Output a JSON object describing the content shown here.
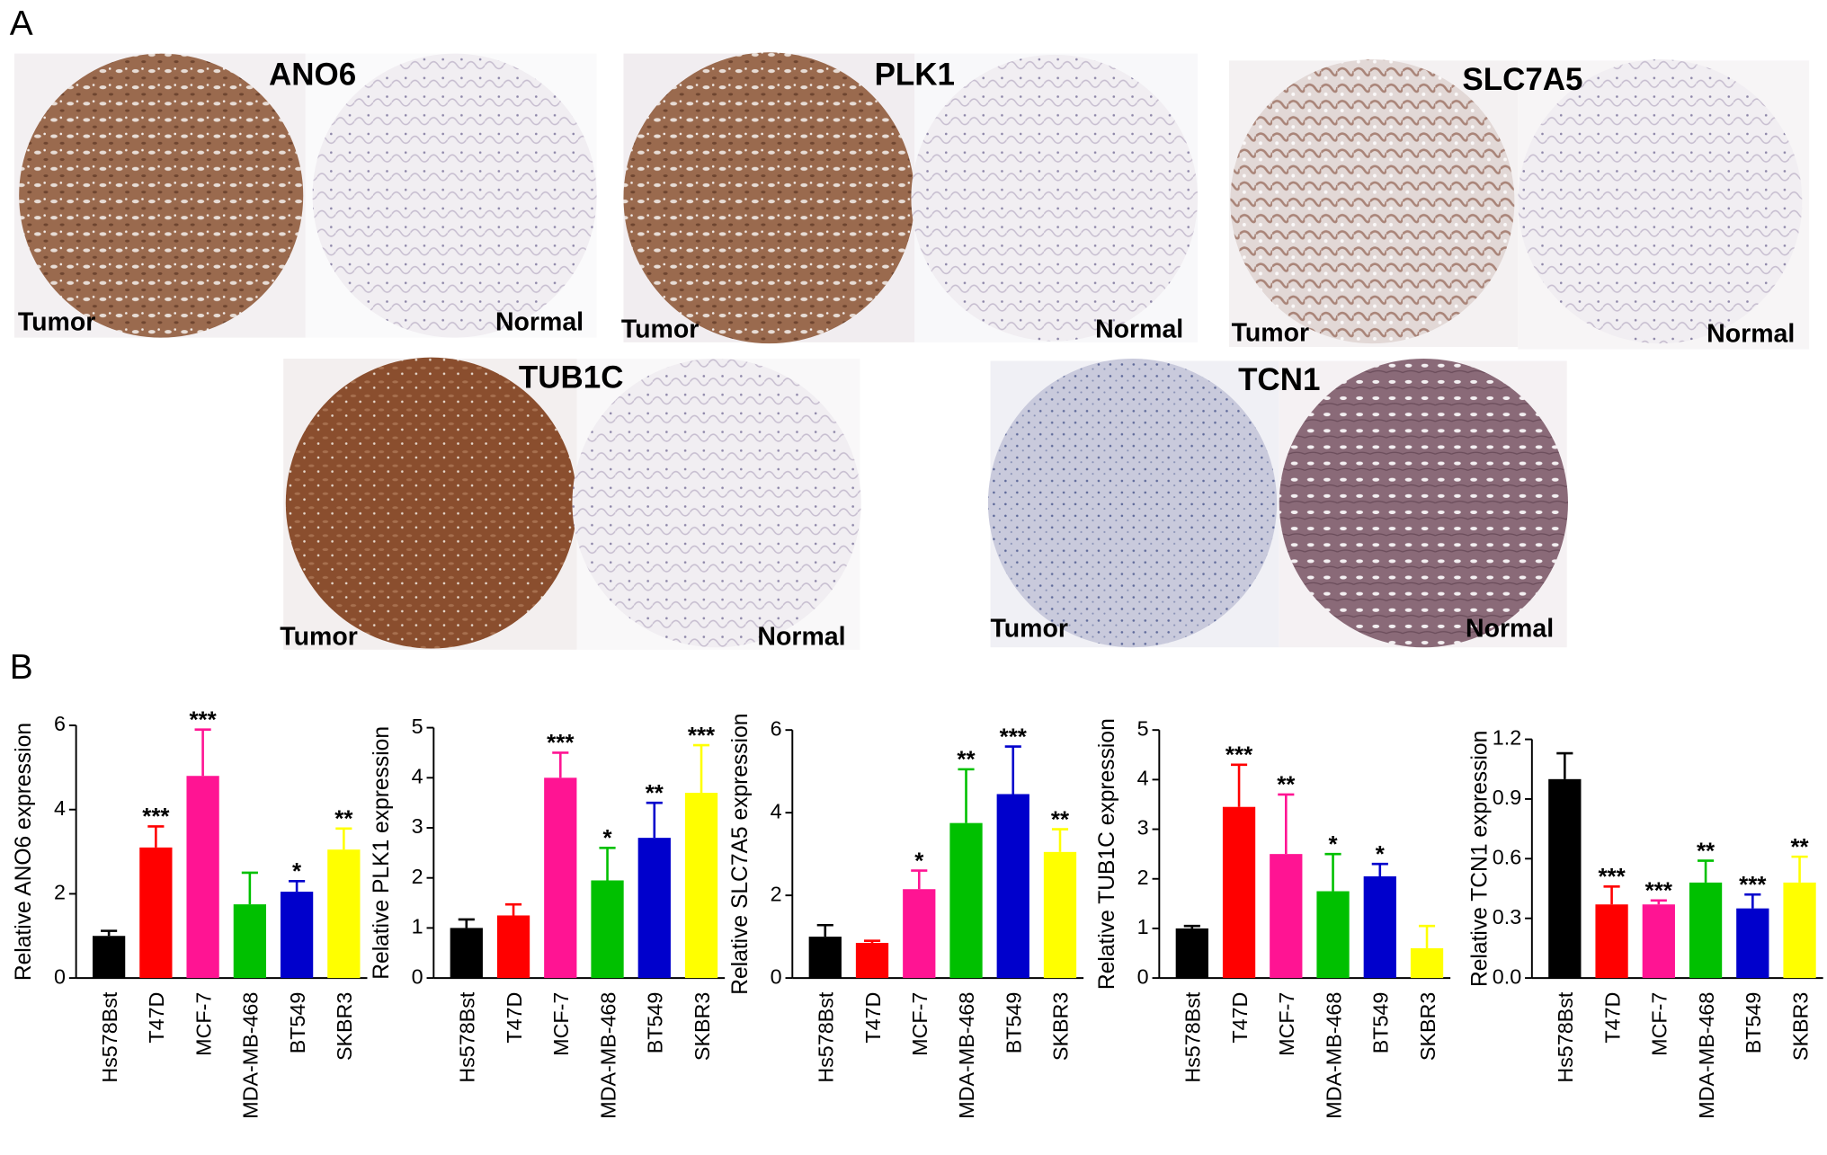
{
  "figure": {
    "panel_labels": [
      "A",
      "B"
    ],
    "ihc": [
      {
        "gene": "ANO6",
        "tumor": "Tumor",
        "normal": "Normal"
      },
      {
        "gene": "PLK1",
        "tumor": "Tumor",
        "normal": "Normal"
      },
      {
        "gene": "SLC7A5",
        "tumor": "Tumor",
        "normal": "Normal"
      },
      {
        "gene": "TUB1C",
        "tumor": "Tumor",
        "normal": "Normal"
      },
      {
        "gene": "TCN1",
        "tumor": "Tumor",
        "normal": "Normal"
      }
    ]
  },
  "chart_data": [
    {
      "type": "bar",
      "y_label": "Relative ANO6 expression",
      "categories": [
        "Hs578Bst",
        "T47D",
        "MCF-7",
        "MDA-MB-468",
        "BT549",
        "SKBR3"
      ],
      "values": [
        1.0,
        3.1,
        4.8,
        1.75,
        2.05,
        3.05
      ],
      "errors": [
        0.12,
        0.5,
        1.1,
        0.75,
        0.25,
        0.5
      ],
      "annotations": [
        null,
        "***",
        "***",
        null,
        "*",
        "**"
      ],
      "colors": [
        "#000000",
        "#ff0000",
        "#ff1493",
        "#00c000",
        "#0000cc",
        "#ffff00"
      ],
      "ylim": [
        0,
        6
      ],
      "yticks": [
        0,
        2,
        4,
        6
      ]
    },
    {
      "type": "bar",
      "y_label": "Relative PLK1 expression",
      "categories": [
        "Hs578Bst",
        "T47D",
        "MCF-7",
        "MDA-MB-468",
        "BT549",
        "SKBR3"
      ],
      "values": [
        1.0,
        1.25,
        4.0,
        1.95,
        2.8,
        3.7
      ],
      "errors": [
        0.17,
        0.22,
        0.5,
        0.65,
        0.7,
        0.95
      ],
      "annotations": [
        null,
        null,
        "***",
        "*",
        "**",
        "***"
      ],
      "colors": [
        "#000000",
        "#ff0000",
        "#ff1493",
        "#00c000",
        "#0000cc",
        "#ffff00"
      ],
      "ylim": [
        0,
        5
      ],
      "yticks": [
        0,
        1,
        2,
        3,
        4,
        5
      ]
    },
    {
      "type": "bar",
      "y_label": "Relative SLC7A5 expression",
      "categories": [
        "Hs578Bst",
        "T47D",
        "MCF-7",
        "MDA-MB-468",
        "BT549",
        "SKBR3"
      ],
      "values": [
        1.0,
        0.85,
        2.15,
        3.75,
        4.45,
        3.05
      ],
      "errors": [
        0.28,
        0.05,
        0.45,
        1.3,
        1.15,
        0.55
      ],
      "annotations": [
        null,
        null,
        "*",
        "**",
        "***",
        "**"
      ],
      "colors": [
        "#000000",
        "#ff0000",
        "#ff1493",
        "#00c000",
        "#0000cc",
        "#ffff00"
      ],
      "ylim": [
        0,
        6
      ],
      "yticks": [
        0,
        2,
        4,
        6
      ]
    },
    {
      "type": "bar",
      "y_label": "Relative TUB1C expression",
      "categories": [
        "Hs578Bst",
        "T47D",
        "MCF-7",
        "MDA-MB-468",
        "BT549",
        "SKBR3"
      ],
      "values": [
        1.0,
        3.45,
        2.5,
        1.75,
        2.05,
        0.6
      ],
      "errors": [
        0.05,
        0.85,
        1.2,
        0.75,
        0.25,
        0.45
      ],
      "annotations": [
        null,
        "***",
        "**",
        "*",
        "*",
        null
      ],
      "colors": [
        "#000000",
        "#ff0000",
        "#ff1493",
        "#00c000",
        "#0000cc",
        "#ffff00"
      ],
      "ylim": [
        0,
        5
      ],
      "yticks": [
        0,
        1,
        2,
        3,
        4,
        5
      ]
    },
    {
      "type": "bar",
      "y_label": "Relative TCN1 expression",
      "categories": [
        "Hs578Bst",
        "T47D",
        "MCF-7",
        "MDA-MB-468",
        "BT549",
        "SKBR3"
      ],
      "values": [
        1.0,
        0.37,
        0.37,
        0.48,
        0.35,
        0.48
      ],
      "errors": [
        0.13,
        0.09,
        0.02,
        0.11,
        0.07,
        0.13
      ],
      "annotations": [
        null,
        "***",
        "***",
        "**",
        "***",
        "**"
      ],
      "colors": [
        "#000000",
        "#ff0000",
        "#ff1493",
        "#00c000",
        "#0000cc",
        "#ffff00"
      ],
      "ylim": [
        0,
        1.2
      ],
      "yticks": [
        {
          "value": 0,
          "label": "0.0"
        },
        0.3,
        0.6,
        0.9,
        1.2
      ]
    }
  ]
}
